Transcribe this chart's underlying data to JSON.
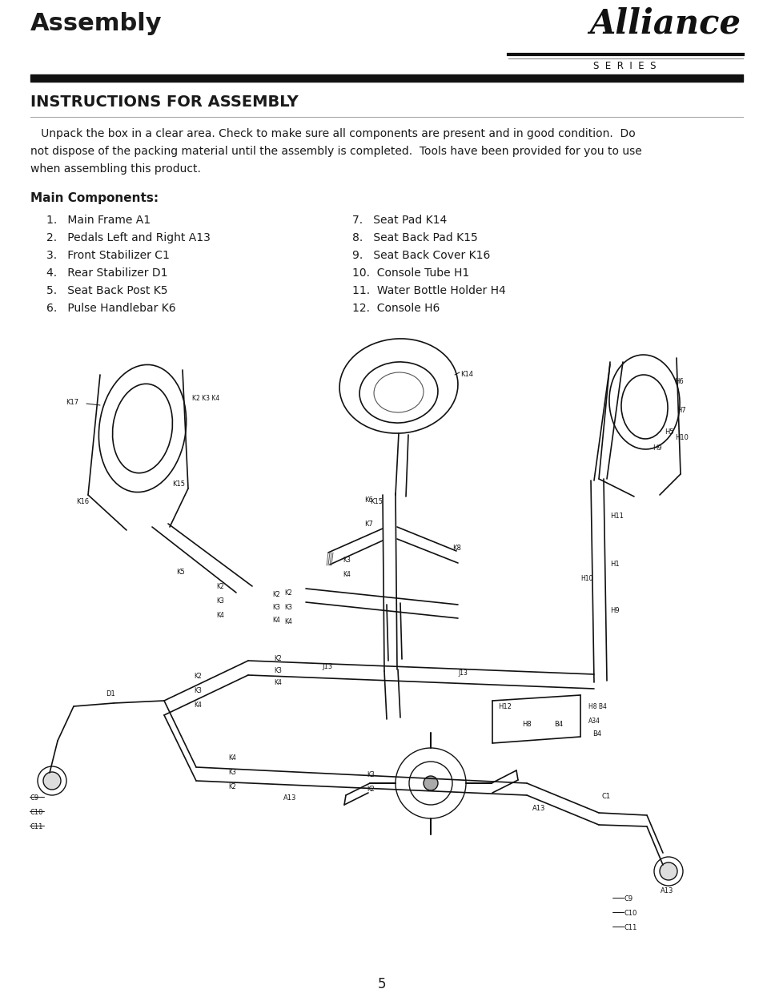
{
  "page_title": "Assembly",
  "logo_text": "Alliance",
  "logo_series": "S  E  R  I  E  S",
  "section_title": "INSTRUCTIONS FOR ASSEMBLY",
  "body_line1": "   Unpack the box in a clear area. Check to make sure all components are present and in good condition.  Do",
  "body_line2": "not dispose of the packing material until the assembly is completed.  Tools have been provided for you to use",
  "body_line3": "when assembling this product.",
  "components_header": "Main Components:",
  "components_col1": [
    "1.   Main Frame A1",
    "2.   Pedals Left and Right A13",
    "3.   Front Stabilizer C1",
    "4.   Rear Stabilizer D1",
    "5.   Seat Back Post K5",
    "6.   Pulse Handlebar K6"
  ],
  "components_col2": [
    "7.   Seat Pad K14",
    "8.   Seat Back Pad K15",
    "9.   Seat Back Cover K16",
    "10.  Console Tube H1",
    "11.  Water Bottle Holder H4",
    "12.  Console H6"
  ],
  "page_number": "5",
  "bg_color": "#ffffff",
  "text_color": "#1a1a1a",
  "line_color": "#111111"
}
